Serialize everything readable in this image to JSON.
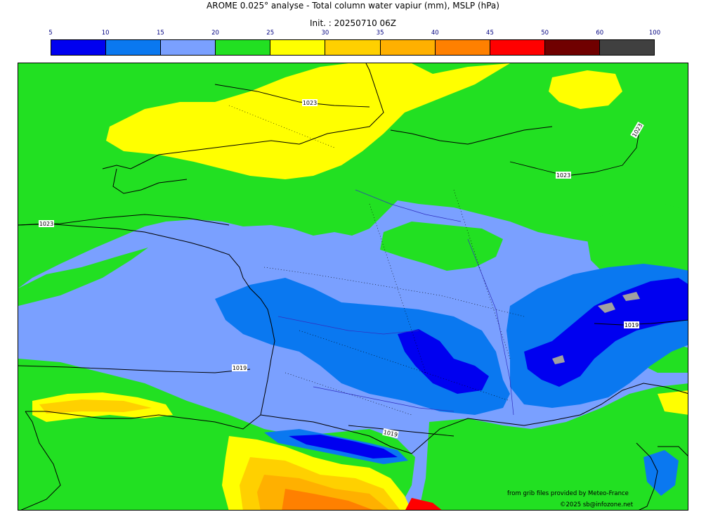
{
  "title": "AROME 0.025° analyse - Total column water vapiur (mm), MSLP (hPa)",
  "init": "Init. : 20250710 06Z",
  "colorbar": {
    "ticks": [
      "5",
      "10",
      "15",
      "20",
      "25",
      "30",
      "35",
      "40",
      "45",
      "50",
      "60",
      "100"
    ],
    "tick_color": "#000080",
    "colors": [
      "#0000f0",
      "#0a78f0",
      "#7aa0ff",
      "#22e022",
      "#ffff00",
      "#ffd000",
      "#ffb000",
      "#ff8000",
      "#ff0000",
      "#700000",
      "#404040"
    ]
  },
  "isobars": [
    "1023",
    "1023",
    "1023",
    "1023",
    "1019",
    "1019",
    "1019"
  ],
  "credits": {
    "source": "from grib files provided by Meteo-France",
    "copyright": "©2025 sb@infozone.net"
  }
}
